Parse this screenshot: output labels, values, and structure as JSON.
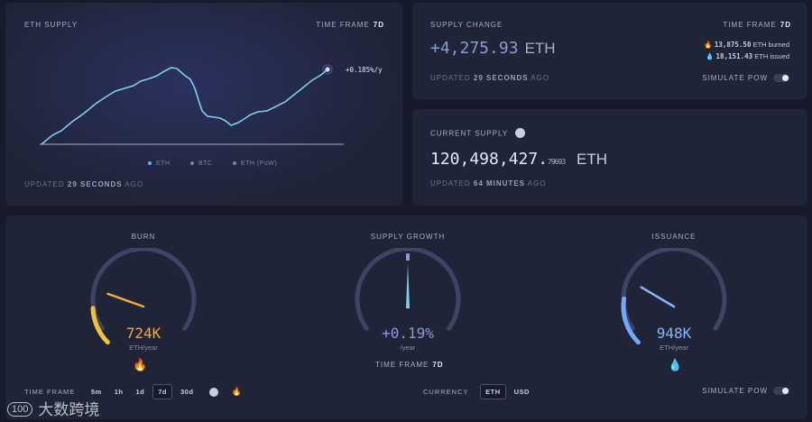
{
  "supply_chart": {
    "title": "ETH SUPPLY",
    "time_frame_label": "TIME FRAME",
    "time_frame_value": "7d",
    "growth_label": "+0.185%/y",
    "updated_prefix": "UPDATED",
    "updated_value": "29 SECONDS",
    "updated_suffix": "AGO",
    "legend": [
      "ETH",
      "BTC",
      "ETH (PoW)"
    ],
    "line_color": "#7fd0ec"
  },
  "supply_change": {
    "title": "SUPPLY CHANGE",
    "time_frame_label": "TIME FRAME",
    "time_frame_value": "7d",
    "value": "+4,275.93",
    "unit": "ETH",
    "burned_value": "13,875.50",
    "burned_label": "ETH burned",
    "issued_value": "18,151.43",
    "issued_label": "ETH issued",
    "updated_prefix": "UPDATED",
    "updated_value": "29 SECONDS",
    "updated_suffix": "AGO",
    "simulate_label": "SIMULATE PoW"
  },
  "current_supply": {
    "title": "CURRENT SUPPLY",
    "value_main": "120,498,427.",
    "value_decimals": "79693",
    "unit": "ETH",
    "updated_prefix": "UPDATED",
    "updated_value": "64 MINUTES",
    "updated_suffix": "AGO"
  },
  "gauges": {
    "burn": {
      "title": "BURN",
      "value": "724K",
      "unit": "ETH/year",
      "level": 0.16,
      "color": "#f0a93a"
    },
    "growth": {
      "title": "SUPPLY GROWTH",
      "value": "+0.19%",
      "unit": "/year",
      "level": 0.5,
      "color": "#8a9bd8",
      "time_frame_label": "TIME FRAME",
      "time_frame_value": "7d"
    },
    "issuance": {
      "title": "ISSUANCE",
      "value": "948K",
      "unit": "ETH/year",
      "level": 0.2,
      "color": "#6fa8ff"
    }
  },
  "bottom": {
    "time_frame_label": "TIME FRAME",
    "time_frames": [
      "5m",
      "1h",
      "1d",
      "7d",
      "30d"
    ],
    "active_time_frame": "7d",
    "currency_label": "CURRENCY",
    "currencies": [
      "ETH",
      "USD"
    ],
    "active_currency": "ETH",
    "simulate_label": "SIMULATE PoW"
  },
  "watermark": {
    "logo": "100",
    "text": "大数跨境"
  }
}
